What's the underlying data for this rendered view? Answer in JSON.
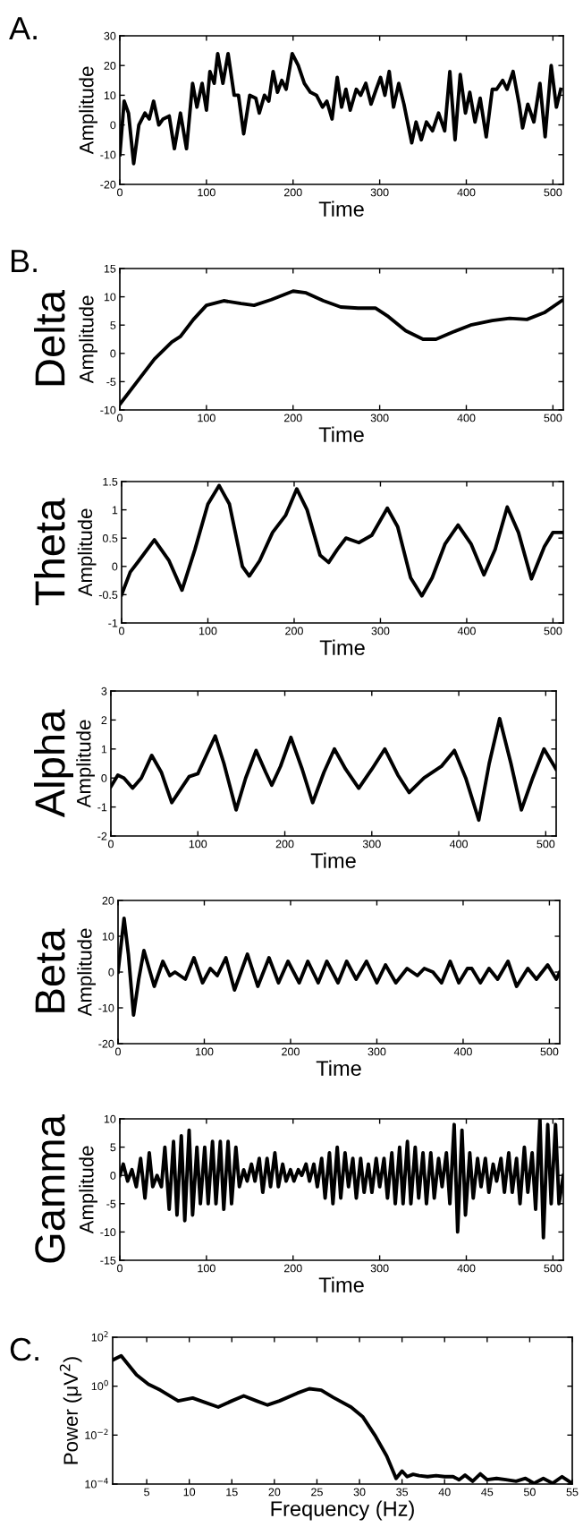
{
  "chart_data": [
    {
      "type": "line",
      "annotations": [
        "A."
      ],
      "xlabel": "Time",
      "ylabel": "Amplitude",
      "xlim": [
        0,
        512
      ],
      "xticks": [
        0,
        100,
        200,
        300,
        400,
        500
      ],
      "ylim": [
        -20,
        30
      ],
      "yticks": [
        -20,
        -10,
        0,
        10,
        20,
        30
      ],
      "grid": false,
      "series": [
        {
          "color": "#000000",
          "x": [
            0,
            5,
            10,
            16,
            22,
            29,
            34,
            39,
            45,
            50,
            57,
            63,
            70,
            77,
            84,
            89,
            95,
            100,
            104,
            109,
            113,
            119,
            125,
            132,
            137,
            143,
            150,
            157,
            161,
            167,
            172,
            177,
            182,
            187,
            192,
            199,
            206,
            213,
            220,
            227,
            234,
            239,
            245,
            251,
            256,
            261,
            266,
            273,
            278,
            284,
            290,
            296,
            301,
            306,
            311,
            316,
            322,
            328,
            337,
            342,
            348,
            354,
            361,
            368,
            375,
            381,
            387,
            393,
            399,
            404,
            410,
            416,
            423,
            430,
            435,
            442,
            447,
            454,
            461,
            465,
            471,
            478,
            485,
            491,
            498,
            504,
            509
          ],
          "values": [
            -10,
            8,
            4,
            -13,
            0,
            4,
            2,
            8,
            0,
            2,
            3,
            -8,
            4,
            -8,
            14,
            6,
            14,
            5,
            18,
            14,
            24,
            14,
            24,
            10,
            10,
            -3,
            10,
            9,
            4,
            10,
            8,
            18,
            11,
            15,
            12,
            24,
            20,
            14,
            11,
            10,
            6,
            8,
            2,
            16,
            6,
            12,
            5,
            12,
            10,
            14,
            7,
            12,
            16,
            10,
            18,
            6,
            14,
            7,
            -6,
            1,
            -5,
            1,
            -2,
            4,
            -2,
            18,
            -5,
            17,
            4,
            11,
            1,
            9,
            -4,
            12,
            12,
            15,
            12,
            18,
            7,
            -1,
            7,
            1,
            14,
            -4,
            20,
            6,
            12
          ]
        }
      ]
    },
    {
      "type": "line",
      "title": "Delta",
      "annotations": [
        "B."
      ],
      "xlabel": "Time",
      "ylabel": "Amplitude",
      "xlim": [
        0,
        512
      ],
      "xticks": [
        0,
        100,
        200,
        300,
        400,
        500
      ],
      "ylim": [
        -10,
        15
      ],
      "yticks": [
        -10,
        -5,
        0,
        5,
        10,
        15
      ],
      "grid": false,
      "series": [
        {
          "color": "#000000",
          "x": [
            0,
            20,
            40,
            60,
            70,
            85,
            100,
            120,
            140,
            155,
            175,
            200,
            215,
            235,
            255,
            275,
            295,
            310,
            330,
            350,
            365,
            385,
            405,
            430,
            450,
            470,
            490,
            512
          ],
          "values": [
            -9,
            -5,
            -1,
            2,
            3,
            6,
            8.5,
            9.3,
            8.8,
            8.5,
            9.5,
            11,
            10.7,
            9.3,
            8.2,
            8,
            8,
            6.5,
            4,
            2.5,
            2.5,
            3.8,
            5,
            5.8,
            6.2,
            6,
            7.2,
            9.5
          ]
        }
      ]
    },
    {
      "type": "line",
      "title": "Theta",
      "xlabel": "Time",
      "ylabel": "Amplitude",
      "xlim": [
        0,
        512
      ],
      "xticks": [
        0,
        100,
        200,
        300,
        400,
        500
      ],
      "ylim": [
        -1,
        1.5
      ],
      "yticks": [
        -1,
        -0.5,
        0,
        0.5,
        1,
        1.5
      ],
      "grid": false,
      "series": [
        {
          "color": "#000000",
          "x": [
            0,
            10,
            20,
            38,
            55,
            70,
            85,
            100,
            113,
            125,
            140,
            148,
            160,
            175,
            190,
            203,
            215,
            230,
            240,
            250,
            260,
            275,
            290,
            308,
            320,
            335,
            348,
            360,
            375,
            390,
            405,
            420,
            433,
            447,
            460,
            475,
            490,
            500,
            512
          ],
          "values": [
            -0.5,
            -0.1,
            0.1,
            0.47,
            0.1,
            -0.42,
            0.3,
            1.1,
            1.43,
            1.1,
            0,
            -0.17,
            0.1,
            0.6,
            0.9,
            1.37,
            1.0,
            0.2,
            0.07,
            0.3,
            0.5,
            0.42,
            0.55,
            1.03,
            0.7,
            -0.2,
            -0.52,
            -0.2,
            0.4,
            0.73,
            0.4,
            -0.15,
            0.3,
            1.05,
            0.6,
            -0.22,
            0.35,
            0.6,
            0.6
          ]
        }
      ]
    },
    {
      "type": "line",
      "title": "Alpha",
      "xlabel": "Time",
      "ylabel": "Amplitude",
      "xlim": [
        0,
        512
      ],
      "xticks": [
        0,
        100,
        200,
        300,
        400,
        500
      ],
      "ylim": [
        -2,
        3
      ],
      "yticks": [
        -2,
        -1,
        0,
        1,
        2,
        3
      ],
      "grid": false,
      "series": [
        {
          "color": "#000000",
          "x": [
            0,
            8,
            15,
            25,
            35,
            47,
            58,
            70,
            80,
            90,
            100,
            110,
            120,
            130,
            144,
            155,
            167,
            178,
            185,
            195,
            207,
            220,
            232,
            245,
            257,
            270,
            285,
            300,
            315,
            330,
            343,
            360,
            380,
            395,
            408,
            423,
            435,
            447,
            460,
            472,
            485,
            498,
            512
          ],
          "values": [
            -0.3,
            0.1,
            0,
            -0.35,
            0,
            0.78,
            0.2,
            -0.85,
            -0.4,
            0.05,
            0.15,
            0.8,
            1.45,
            0.5,
            -1.1,
            0,
            0.95,
            0.2,
            -0.25,
            0.4,
            1.4,
            0.3,
            -0.85,
            0.2,
            1.0,
            0.3,
            -0.35,
            0.3,
            1.0,
            0.1,
            -0.5,
            0,
            0.4,
            0.95,
            0,
            -1.45,
            0.5,
            2.05,
            0.5,
            -1.1,
            0,
            1.0,
            0.3
          ]
        }
      ]
    },
    {
      "type": "line",
      "title": "Beta",
      "xlabel": "Time",
      "ylabel": "Amplitude",
      "xlim": [
        0,
        512
      ],
      "xticks": [
        0,
        100,
        200,
        300,
        400,
        500
      ],
      "ylim": [
        -20,
        20
      ],
      "yticks": [
        -20,
        -10,
        0,
        10,
        20
      ],
      "grid": false,
      "series": [
        {
          "color": "#000000",
          "x": [
            0,
            7,
            12,
            18,
            24,
            30,
            36,
            42,
            52,
            60,
            66,
            72,
            78,
            88,
            98,
            107,
            115,
            125,
            135,
            150,
            162,
            175,
            186,
            197,
            210,
            220,
            232,
            242,
            255,
            265,
            276,
            288,
            300,
            310,
            322,
            335,
            347,
            355,
            365,
            375,
            385,
            395,
            405,
            410,
            420,
            430,
            440,
            452,
            462,
            475,
            485,
            498,
            508,
            512
          ],
          "values": [
            0,
            15,
            5,
            -12,
            -2,
            6,
            1,
            -4,
            3,
            -1,
            0,
            -1,
            -2,
            4,
            -3,
            1,
            -1,
            4,
            -5,
            5,
            -4,
            4,
            -3,
            3,
            -3,
            3,
            -3,
            3,
            -3,
            3,
            -2,
            3,
            -3,
            2,
            -3,
            1,
            -1,
            1,
            0,
            -3,
            3,
            -3,
            1,
            1,
            -3,
            1,
            -2,
            3,
            -4,
            1,
            -2,
            2,
            -2,
            0
          ]
        }
      ]
    },
    {
      "type": "line",
      "title": "Gamma",
      "xlabel": "Time",
      "ylabel": "Amplitude",
      "xlim": [
        0,
        512
      ],
      "xticks": [
        0,
        100,
        200,
        300,
        400,
        500
      ],
      "ylim": [
        -15,
        10
      ],
      "yticks": [
        -15,
        -10,
        -5,
        0,
        5,
        10
      ],
      "grid": false,
      "series": [
        {
          "color": "#000000",
          "x": [
            0,
            4,
            9,
            14,
            19,
            24,
            29,
            34,
            38,
            43,
            48,
            52,
            57,
            62,
            66,
            71,
            75,
            80,
            84,
            89,
            93,
            98,
            102,
            107,
            111,
            116,
            120,
            125,
            129,
            134,
            138,
            143,
            147,
            152,
            156,
            161,
            165,
            170,
            174,
            179,
            183,
            188,
            192,
            197,
            201,
            206,
            210,
            215,
            219,
            224,
            228,
            233,
            237,
            242,
            246,
            251,
            255,
            260,
            264,
            269,
            273,
            278,
            282,
            287,
            291,
            296,
            300,
            305,
            309,
            314,
            318,
            323,
            327,
            332,
            336,
            341,
            345,
            350,
            354,
            359,
            363,
            368,
            372,
            377,
            381,
            386,
            390,
            395,
            399,
            404,
            408,
            413,
            417,
            422,
            426,
            431,
            435,
            440,
            444,
            449,
            453,
            458,
            462,
            467,
            471,
            476,
            480,
            485,
            489,
            494,
            498,
            503,
            507,
            512
          ],
          "values": [
            0,
            2,
            -1,
            1,
            -2,
            3,
            -4,
            4,
            -2,
            0,
            -2,
            5,
            -6,
            6,
            -7,
            7,
            -8,
            8,
            -7,
            5,
            -5,
            5,
            -5,
            6,
            -5,
            6,
            -6,
            6,
            -5,
            5,
            -2,
            1,
            -1,
            2,
            -1,
            3,
            -3,
            3,
            -2,
            4,
            -2,
            2,
            -1,
            1,
            -1,
            1,
            0,
            2,
            -1,
            2,
            -2,
            3,
            -4,
            4,
            -5,
            5,
            -4,
            4,
            -2,
            3,
            -4,
            3,
            -3,
            2,
            -3,
            3,
            -2,
            3,
            -4,
            4,
            -5,
            5,
            -5,
            6,
            -5,
            5,
            -4,
            4,
            -5,
            4,
            -4,
            3,
            -2,
            4,
            -5,
            9,
            -10,
            8,
            -7,
            4,
            -4,
            3,
            -2,
            3,
            -3,
            2,
            -1,
            3,
            -3,
            4,
            -3,
            3,
            -5,
            5,
            -3,
            4,
            -6,
            10,
            -11,
            9,
            -5,
            9,
            -5,
            0
          ]
        }
      ]
    },
    {
      "type": "line",
      "annotations": [
        "C."
      ],
      "xlabel": "Frequency (Hz)",
      "ylabel": "Power (μV$^{2}$)",
      "log": "y",
      "xlim": [
        1,
        55
      ],
      "xticks": [
        5,
        10,
        15,
        20,
        25,
        30,
        35,
        40,
        45,
        50,
        55
      ],
      "ylim": [
        0.0001,
        100
      ],
      "yticks": [
        {
          "value": 0.0001,
          "label": "10$^{−4}$"
        },
        {
          "value": 0.01,
          "label": "10$^{−2}$"
        },
        {
          "value": 1,
          "label": "10$^{0}$"
        },
        {
          "value": 100,
          "label": "10$^{2}$"
        }
      ],
      "grid": false,
      "series": [
        {
          "color": "#000000",
          "x": [
            1,
            2,
            3.8,
            5.2,
            6.6,
            8.7,
            10.4,
            11.8,
            13.4,
            15,
            16.4,
            17.9,
            19.2,
            20.6,
            22.7,
            24.1,
            25.5,
            26.9,
            29,
            30.4,
            31.8,
            33.2,
            34.3,
            35,
            35.6,
            36.3,
            37,
            38,
            39,
            40,
            41,
            41.7,
            42.4,
            43.3,
            44.2,
            45,
            46.1,
            47.2,
            48.4,
            49.5,
            50.5,
            51.6,
            52.7,
            53.8,
            55
          ],
          "values": [
            11.7,
            17.4,
            2.9,
            1.2,
            0.69,
            0.25,
            0.33,
            0.22,
            0.14,
            0.25,
            0.4,
            0.25,
            0.17,
            0.25,
            0.52,
            0.79,
            0.69,
            0.35,
            0.14,
            0.055,
            0.01,
            0.0014,
            0.00017,
            0.00034,
            0.0002,
            0.00025,
            0.00022,
            0.0002,
            0.00022,
            0.0002,
            0.0002,
            0.00015,
            0.00023,
            0.00013,
            0.00026,
            0.00015,
            0.00017,
            0.00015,
            0.00013,
            0.00017,
            0.000107,
            0.00017,
            0.000107,
            0.0002,
            0.000105
          ]
        }
      ]
    }
  ]
}
